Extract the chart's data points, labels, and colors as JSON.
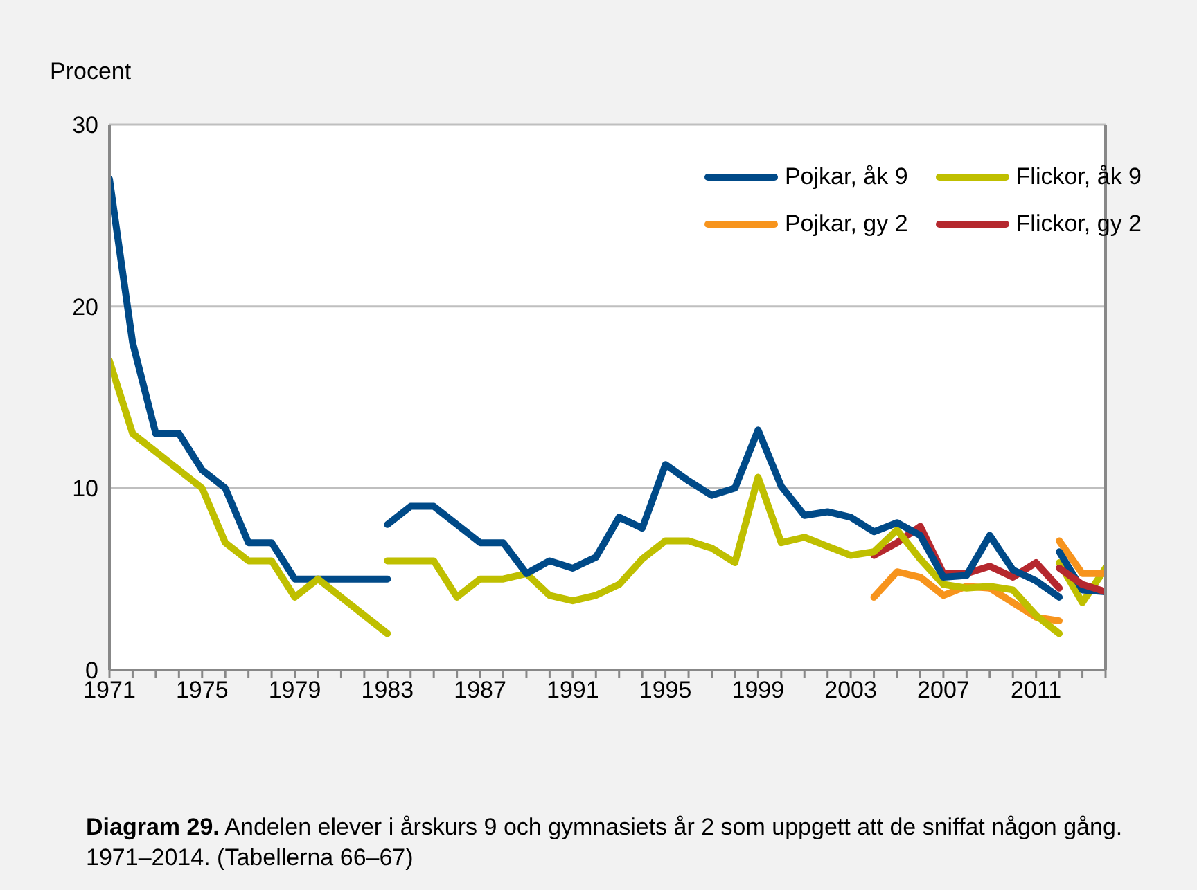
{
  "chart_data": {
    "type": "line",
    "ylabel": "Procent",
    "annotations": [
      "Diagram 29. Andelen elever i årskurs 9 och gymnasiets år 2 som uppgett att de sniffat någon gång. 1971–2014. (Tabellerna 66–67)"
    ],
    "xlim": [
      1971,
      2014
    ],
    "xticks": [
      1971,
      {
        "value": 1972,
        "label": null
      },
      {
        "value": 1973,
        "label": null
      },
      {
        "value": 1974,
        "label": null
      },
      1975,
      {
        "value": 1976,
        "label": null
      },
      {
        "value": 1977,
        "label": null
      },
      {
        "value": 1978,
        "label": null
      },
      1979,
      {
        "value": 1980,
        "label": null
      },
      {
        "value": 1981,
        "label": null
      },
      {
        "value": 1982,
        "label": null
      },
      1983,
      {
        "value": 1984,
        "label": null
      },
      {
        "value": 1985,
        "label": null
      },
      {
        "value": 1986,
        "label": null
      },
      1987,
      {
        "value": 1988,
        "label": null
      },
      {
        "value": 1989,
        "label": null
      },
      {
        "value": 1990,
        "label": null
      },
      1991,
      {
        "value": 1992,
        "label": null
      },
      {
        "value": 1993,
        "label": null
      },
      {
        "value": 1994,
        "label": null
      },
      1995,
      {
        "value": 1996,
        "label": null
      },
      {
        "value": 1997,
        "label": null
      },
      {
        "value": 1998,
        "label": null
      },
      1999,
      {
        "value": 2000,
        "label": null
      },
      {
        "value": 2001,
        "label": null
      },
      {
        "value": 2002,
        "label": null
      },
      2003,
      {
        "value": 2004,
        "label": null
      },
      {
        "value": 2005,
        "label": null
      },
      {
        "value": 2006,
        "label": null
      },
      2007,
      {
        "value": 2008,
        "label": null
      },
      {
        "value": 2009,
        "label": null
      },
      {
        "value": 2010,
        "label": null
      },
      2011,
      {
        "value": 2012,
        "label": null
      },
      {
        "value": 2013,
        "label": null
      },
      {
        "value": 2014,
        "label": null
      }
    ],
    "ylim": [
      0,
      30
    ],
    "yticks": [
      0,
      10,
      20,
      30
    ],
    "grid": "y",
    "legend": "top right",
    "marker": "none",
    "line_style": "solid",
    "series": [
      {
        "name": "Pojkar, åk 9",
        "color": "#004a88",
        "x": [
          1971,
          1972,
          1973,
          1974,
          1975,
          1976,
          1977,
          1978,
          1979,
          1980,
          1981,
          1982,
          1983
        ],
        "values": [
          27,
          18,
          13,
          13,
          11,
          10,
          7,
          7,
          5,
          5,
          5,
          5,
          5
        ]
      },
      {
        "name": "Flickor, åk 9",
        "color": "#bfbf00",
        "x": [
          1971,
          1972,
          1973,
          1974,
          1975,
          1976,
          1977,
          1978,
          1979,
          1980,
          1981,
          1982,
          1983
        ],
        "values": [
          17,
          13,
          12,
          11,
          10,
          7,
          6,
          6,
          4,
          5,
          4,
          3,
          2
        ]
      },
      {
        "name": "Pojkar, gy 2",
        "color": "#f7941d",
        "x": [
          2004,
          2005,
          2006,
          2007,
          2008,
          2009,
          2010,
          2011,
          2012
        ],
        "values": [
          4.0,
          5.4,
          5.1,
          4.1,
          4.6,
          4.5,
          3.7,
          2.9,
          2.7
        ]
      },
      {
        "name": "Flickor, gy 2",
        "color": "#b5282e",
        "x": [
          2004,
          2005,
          2006,
          2007,
          2008,
          2009,
          2010,
          2011,
          2012
        ],
        "values": [
          6.3,
          7.0,
          7.9,
          5.3,
          5.3,
          5.7,
          5.1,
          5.9,
          4.5
        ]
      },
      {
        "color": "#bfbf00",
        "x": [
          1983,
          1984,
          1985,
          1986,
          1987,
          1988,
          1989,
          1990,
          1991,
          1992,
          1993,
          1994,
          1995,
          1996,
          1997,
          1998,
          1999,
          2000,
          2001,
          2002,
          2003,
          2004,
          2005,
          2006,
          2007,
          2008,
          2009,
          2010,
          2011,
          2012
        ],
        "values": [
          6,
          6,
          6,
          4,
          5,
          5,
          5.3,
          4.1,
          3.8,
          4.1,
          4.7,
          6.1,
          7.1,
          7.1,
          6.7,
          5.9,
          10.6,
          7.0,
          7.3,
          6.8,
          6.3,
          6.5,
          7.7,
          6.1,
          4.7,
          4.5,
          4.6,
          4.4,
          3.0,
          2.0
        ]
      },
      {
        "color": "#004a88",
        "x": [
          1983,
          1984,
          1985,
          1986,
          1987,
          1988,
          1989,
          1990,
          1991,
          1992,
          1993,
          1994,
          1995,
          1996,
          1997,
          1998,
          1999,
          2000,
          2001,
          2002,
          2003,
          2004,
          2005,
          2006,
          2007,
          2008,
          2009,
          2010,
          2011,
          2012
        ],
        "values": [
          8,
          9,
          9,
          8,
          7,
          7,
          5.3,
          6,
          5.6,
          6.2,
          8.4,
          7.8,
          11.3,
          10.4,
          9.6,
          10,
          13.2,
          10.1,
          8.5,
          8.7,
          8.4,
          7.6,
          8.1,
          7.4,
          5.1,
          5.2,
          7.4,
          5.5,
          4.9,
          4.0
        ]
      },
      {
        "color": "#bfbf00",
        "x": [
          2012,
          2013,
          2014
        ],
        "values": [
          5.9,
          3.7,
          5.6
        ]
      },
      {
        "color": "#f7941d",
        "x": [
          2012,
          2013,
          2014
        ],
        "values": [
          7.1,
          5.3,
          5.3
        ]
      },
      {
        "color": "#004a88",
        "x": [
          2012,
          2013,
          2014
        ],
        "values": [
          6.5,
          4.4,
          4.3
        ]
      },
      {
        "color": "#b5282e",
        "x": [
          2012,
          2013,
          2014
        ],
        "values": [
          5.6,
          4.7,
          4.3
        ]
      }
    ]
  }
}
